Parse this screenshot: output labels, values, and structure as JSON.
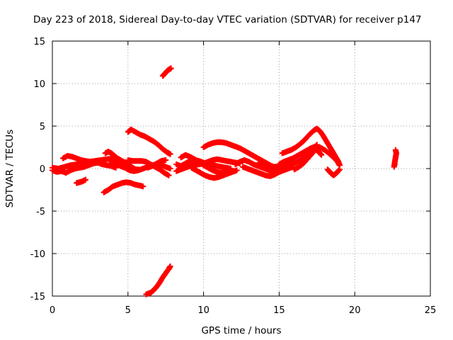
{
  "chart_data": {
    "type": "scatter",
    "title": "Day 223 of 2018, Sidereal Day-to-day VTEC variation (SDTVAR) for receiver p147",
    "xlabel": "GPS time / hours",
    "ylabel": "SDTVAR / TECUs",
    "xlim": [
      0,
      25
    ],
    "ylim": [
      -15,
      15
    ],
    "xticks": [
      0,
      5,
      10,
      15,
      20,
      25
    ],
    "yticks": [
      -15,
      -10,
      -5,
      0,
      5,
      10,
      15
    ],
    "grid": true,
    "marker": "+",
    "color": "#ff0000",
    "series": [
      {
        "points": [
          [
            0.0,
            -0.2
          ],
          [
            0.3,
            -0.4
          ],
          [
            0.6,
            -0.3
          ],
          [
            0.9,
            -0.5
          ],
          [
            1.2,
            -0.2
          ],
          [
            1.5,
            0.0
          ],
          [
            1.8,
            0.1
          ],
          [
            2.1,
            0.2
          ],
          [
            2.4,
            0.4
          ],
          [
            2.7,
            0.6
          ],
          [
            3.0,
            0.7
          ],
          [
            3.3,
            0.5
          ],
          [
            3.6,
            0.4
          ],
          [
            3.9,
            0.3
          ],
          [
            4.2,
            0.1
          ],
          [
            0.0,
            0.1
          ],
          [
            0.4,
            0.0
          ],
          [
            0.8,
            0.2
          ],
          [
            1.2,
            0.4
          ],
          [
            1.6,
            0.5
          ],
          [
            2.0,
            0.7
          ],
          [
            2.4,
            0.8
          ],
          [
            2.8,
            0.9
          ],
          [
            3.2,
            1.0
          ],
          [
            3.6,
            1.1
          ],
          [
            4.0,
            1.2
          ],
          [
            4.4,
            1.1
          ],
          [
            0.7,
            1.2
          ],
          [
            1.0,
            1.5
          ],
          [
            1.3,
            1.4
          ],
          [
            1.6,
            1.2
          ],
          [
            1.9,
            1.0
          ],
          [
            2.2,
            0.9
          ],
          [
            2.5,
            0.8
          ],
          [
            1.6,
            -1.7
          ],
          [
            1.8,
            -1.6
          ],
          [
            2.0,
            -1.5
          ],
          [
            2.2,
            -1.3
          ],
          [
            3.4,
            -2.8
          ],
          [
            3.7,
            -2.5
          ],
          [
            4.0,
            -2.1
          ],
          [
            4.3,
            -1.9
          ],
          [
            4.6,
            -1.7
          ],
          [
            4.9,
            -1.6
          ],
          [
            5.2,
            -1.7
          ],
          [
            5.5,
            -1.9
          ],
          [
            5.8,
            -2.0
          ],
          [
            6.0,
            -2.1
          ],
          [
            3.5,
            1.8
          ],
          [
            3.7,
            2.0
          ],
          [
            3.9,
            1.8
          ],
          [
            4.1,
            1.5
          ],
          [
            4.3,
            1.2
          ],
          [
            4.5,
            1.0
          ],
          [
            4.7,
            0.8
          ],
          [
            4.9,
            0.6
          ],
          [
            5.1,
            0.4
          ],
          [
            5.3,
            0.1
          ],
          [
            5.5,
            -0.1
          ],
          [
            5.7,
            -0.1
          ],
          [
            3.9,
            0.8
          ],
          [
            4.2,
            0.6
          ],
          [
            4.5,
            0.3
          ],
          [
            4.8,
            0.1
          ],
          [
            5.1,
            -0.2
          ],
          [
            5.4,
            -0.3
          ],
          [
            5.7,
            -0.2
          ],
          [
            6.0,
            0.0
          ],
          [
            6.3,
            0.2
          ],
          [
            6.6,
            0.4
          ],
          [
            6.9,
            0.5
          ],
          [
            7.2,
            0.4
          ],
          [
            7.5,
            0.2
          ],
          [
            7.8,
            0.0
          ],
          [
            5.0,
            4.3
          ],
          [
            5.2,
            4.6
          ],
          [
            5.5,
            4.3
          ],
          [
            5.8,
            4.0
          ],
          [
            6.1,
            3.8
          ],
          [
            6.4,
            3.5
          ],
          [
            6.7,
            3.2
          ],
          [
            7.0,
            2.8
          ],
          [
            7.3,
            2.3
          ],
          [
            7.6,
            1.9
          ],
          [
            7.8,
            1.7
          ],
          [
            5.0,
            1.0
          ],
          [
            5.3,
            0.9
          ],
          [
            5.6,
            0.9
          ],
          [
            5.9,
            0.9
          ],
          [
            6.2,
            0.8
          ],
          [
            6.5,
            0.5
          ],
          [
            6.8,
            0.2
          ],
          [
            7.1,
            -0.1
          ],
          [
            7.4,
            -0.5
          ],
          [
            7.7,
            -0.8
          ],
          [
            6.3,
            0.1
          ],
          [
            6.6,
            0.3
          ],
          [
            6.9,
            0.6
          ],
          [
            7.2,
            0.9
          ],
          [
            7.5,
            1.0
          ],
          [
            7.3,
            10.9
          ],
          [
            7.45,
            11.2
          ],
          [
            7.6,
            11.5
          ],
          [
            7.75,
            11.7
          ],
          [
            7.85,
            11.8
          ],
          [
            6.2,
            -14.8
          ],
          [
            6.5,
            -14.6
          ],
          [
            6.7,
            -14.3
          ],
          [
            6.9,
            -13.9
          ],
          [
            7.1,
            -13.4
          ],
          [
            7.3,
            -12.8
          ],
          [
            7.5,
            -12.3
          ],
          [
            7.7,
            -11.8
          ],
          [
            7.8,
            -11.5
          ],
          [
            8.2,
            0.5
          ],
          [
            8.5,
            0.3
          ],
          [
            8.8,
            0.6
          ],
          [
            9.1,
            0.9
          ],
          [
            9.4,
            1.0
          ],
          [
            9.7,
            0.9
          ],
          [
            10.0,
            0.7
          ],
          [
            10.3,
            0.5
          ],
          [
            10.6,
            0.4
          ],
          [
            10.9,
            0.3
          ],
          [
            11.2,
            0.2
          ],
          [
            11.5,
            0.1
          ],
          [
            11.8,
            0.0
          ],
          [
            8.2,
            -0.3
          ],
          [
            8.5,
            -0.1
          ],
          [
            8.8,
            0.1
          ],
          [
            9.1,
            0.3
          ],
          [
            9.4,
            0.4
          ],
          [
            9.7,
            0.5
          ],
          [
            10.0,
            0.6
          ],
          [
            10.3,
            0.8
          ],
          [
            10.6,
            1.0
          ],
          [
            10.9,
            1.1
          ],
          [
            11.2,
            1.0
          ],
          [
            11.5,
            0.9
          ],
          [
            11.8,
            0.8
          ],
          [
            12.1,
            0.7
          ],
          [
            12.4,
            0.6
          ],
          [
            8.5,
            1.3
          ],
          [
            8.8,
            1.6
          ],
          [
            9.1,
            1.4
          ],
          [
            9.4,
            1.1
          ],
          [
            9.7,
            0.8
          ],
          [
            10.0,
            0.4
          ],
          [
            10.3,
            0.1
          ],
          [
            10.6,
            -0.2
          ],
          [
            10.9,
            -0.4
          ],
          [
            11.2,
            -0.5
          ],
          [
            11.5,
            -0.4
          ],
          [
            11.8,
            -0.2
          ],
          [
            9.2,
            0.1
          ],
          [
            9.5,
            -0.2
          ],
          [
            9.8,
            -0.5
          ],
          [
            10.1,
            -0.8
          ],
          [
            10.4,
            -1.0
          ],
          [
            10.7,
            -1.1
          ],
          [
            11.0,
            -1.0
          ],
          [
            11.3,
            -0.8
          ],
          [
            11.6,
            -0.6
          ],
          [
            11.9,
            -0.4
          ],
          [
            12.2,
            -0.2
          ],
          [
            10.0,
            2.5
          ],
          [
            10.3,
            2.8
          ],
          [
            10.6,
            3.0
          ],
          [
            10.9,
            3.1
          ],
          [
            11.2,
            3.1
          ],
          [
            11.5,
            3.0
          ],
          [
            11.8,
            2.8
          ],
          [
            12.1,
            2.6
          ],
          [
            12.4,
            2.4
          ],
          [
            12.7,
            2.1
          ],
          [
            13.0,
            1.8
          ],
          [
            13.3,
            1.5
          ],
          [
            13.6,
            1.2
          ],
          [
            13.9,
            0.9
          ],
          [
            14.2,
            0.6
          ],
          [
            14.5,
            0.3
          ],
          [
            14.8,
            0.1
          ],
          [
            12.1,
            0.5
          ],
          [
            12.4,
            0.8
          ],
          [
            12.7,
            1.0
          ],
          [
            13.0,
            0.8
          ],
          [
            13.3,
            0.5
          ],
          [
            13.6,
            0.3
          ],
          [
            13.9,
            0.1
          ],
          [
            14.2,
            -0.1
          ],
          [
            14.5,
            -0.3
          ],
          [
            14.8,
            -0.2
          ],
          [
            12.6,
            0.2
          ],
          [
            12.9,
            0.0
          ],
          [
            13.2,
            -0.2
          ],
          [
            13.5,
            -0.4
          ],
          [
            13.8,
            -0.6
          ],
          [
            14.1,
            -0.8
          ],
          [
            14.4,
            -0.9
          ],
          [
            14.7,
            -0.7
          ],
          [
            15.0,
            -0.4
          ],
          [
            15.3,
            -0.2
          ],
          [
            15.6,
            0.0
          ],
          [
            15.9,
            0.2
          ],
          [
            13.5,
            0.4
          ],
          [
            13.8,
            0.6
          ],
          [
            14.1,
            0.5
          ],
          [
            14.4,
            0.3
          ],
          [
            14.7,
            0.2
          ],
          [
            15.0,
            0.3
          ],
          [
            15.3,
            0.4
          ],
          [
            14.6,
            0.0
          ],
          [
            14.9,
            0.1
          ],
          [
            15.2,
            0.2
          ],
          [
            15.5,
            0.3
          ],
          [
            15.8,
            0.5
          ],
          [
            16.1,
            0.7
          ],
          [
            16.4,
            1.0
          ],
          [
            16.7,
            1.4
          ],
          [
            17.0,
            1.9
          ],
          [
            17.3,
            2.4
          ],
          [
            17.5,
            2.8
          ],
          [
            15.0,
            0.5
          ],
          [
            15.3,
            0.8
          ],
          [
            15.6,
            1.0
          ],
          [
            15.9,
            1.2
          ],
          [
            16.2,
            1.5
          ],
          [
            16.5,
            1.8
          ],
          [
            16.8,
            2.1
          ],
          [
            17.1,
            2.4
          ],
          [
            17.4,
            2.6
          ],
          [
            17.7,
            2.5
          ],
          [
            18.0,
            2.2
          ],
          [
            18.3,
            1.8
          ],
          [
            18.6,
            1.3
          ],
          [
            18.9,
            0.8
          ],
          [
            15.2,
            1.8
          ],
          [
            15.5,
            2.0
          ],
          [
            15.8,
            2.2
          ],
          [
            16.1,
            2.5
          ],
          [
            16.4,
            2.9
          ],
          [
            16.7,
            3.4
          ],
          [
            17.0,
            4.0
          ],
          [
            17.3,
            4.5
          ],
          [
            17.5,
            4.7
          ],
          [
            17.7,
            4.4
          ],
          [
            17.9,
            3.9
          ],
          [
            18.1,
            3.3
          ],
          [
            18.3,
            2.7
          ],
          [
            18.5,
            2.1
          ],
          [
            18.7,
            1.5
          ],
          [
            18.9,
            0.9
          ],
          [
            19.0,
            0.4
          ],
          [
            16.0,
            -0.1
          ],
          [
            16.3,
            0.2
          ],
          [
            16.6,
            0.6
          ],
          [
            16.9,
            1.2
          ],
          [
            17.2,
            1.8
          ],
          [
            17.4,
            2.3
          ],
          [
            17.6,
            2.0
          ],
          [
            17.8,
            1.6
          ],
          [
            18.2,
            -0.1
          ],
          [
            18.4,
            -0.5
          ],
          [
            18.6,
            -0.8
          ],
          [
            18.8,
            -0.5
          ],
          [
            19.0,
            -0.1
          ],
          [
            18.8,
            1.0
          ],
          [
            18.9,
            0.7
          ],
          [
            19.0,
            0.4
          ],
          [
            22.6,
            0.2
          ],
          [
            22.65,
            0.8
          ],
          [
            22.7,
            1.3
          ],
          [
            22.75,
            1.8
          ],
          [
            22.7,
            2.2
          ],
          [
            22.65,
            0.5
          ]
        ]
      }
    ]
  }
}
